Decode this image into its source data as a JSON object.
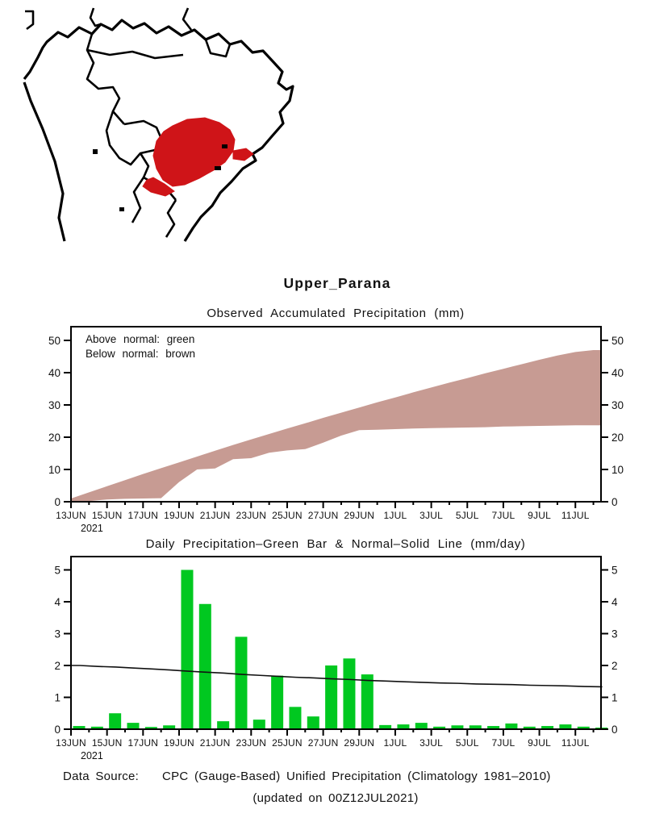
{
  "title": "Upper_Parana",
  "map": {
    "highlight_color": "#cf1418",
    "outline_color": "#000000"
  },
  "footer": {
    "data_source_label": "Data Source:",
    "data_source_text": "CPC (Gauge-Based) Unified Precipitation (Climatology 1981–2010)",
    "updated_text": "(updated on 00Z12JUL2021)",
    "label_color": "#ea6a6a"
  },
  "chart_data": [
    {
      "type": "area",
      "title": "Observed Accumulated Precipitation (mm)",
      "annotations": [
        "Above normal: green",
        "Below normal: brown"
      ],
      "x": [
        "13JUN",
        "14JUN",
        "15JUN",
        "16JUN",
        "17JUN",
        "18JUN",
        "19JUN",
        "20JUN",
        "21JUN",
        "22JUN",
        "23JUN",
        "24JUN",
        "25JUN",
        "26JUN",
        "27JUN",
        "28JUN",
        "29JUN",
        "30JUN",
        "1JUL",
        "2JUL",
        "3JUL",
        "4JUL",
        "5JUL",
        "6JUL",
        "7JUL",
        "8JUL",
        "9JUL",
        "10JUL",
        "11JUL",
        "12JUL"
      ],
      "x_major_tick_labels": [
        "13JUN",
        "15JUN",
        "17JUN",
        "19JUN",
        "21JUN",
        "23JUN",
        "25JUN",
        "27JUN",
        "29JUN",
        "1JUL",
        "3JUL",
        "5JUL",
        "7JUL",
        "9JUL",
        "11JUL"
      ],
      "year_label": "2021",
      "yticks": [
        0,
        10,
        20,
        30,
        40,
        50
      ],
      "ylim": [
        0,
        54
      ],
      "legend_position": "top-left inside",
      "grid": "off",
      "series": [
        {
          "name": "normal_accumulated",
          "role": "band-upper",
          "values": [
            1.0,
            2.9,
            4.8,
            6.7,
            8.6,
            10.4,
            12.2,
            14.0,
            15.8,
            17.6,
            19.3,
            21.0,
            22.7,
            24.3,
            26.0,
            27.6,
            29.2,
            30.8,
            32.3,
            33.9,
            35.4,
            36.9,
            38.3,
            39.8,
            41.2,
            42.6,
            44.0,
            45.3,
            46.4,
            47.0
          ]
        },
        {
          "name": "observed_accumulated",
          "role": "band-lower",
          "values": [
            0.1,
            0.2,
            0.7,
            0.9,
            1.0,
            1.1,
            6.1,
            10.0,
            10.3,
            13.2,
            13.5,
            15.2,
            15.9,
            16.3,
            18.3,
            20.5,
            22.2,
            22.3,
            22.5,
            22.7,
            22.8,
            22.9,
            23.0,
            23.1,
            23.3,
            23.4,
            23.5,
            23.6,
            23.7,
            23.7
          ]
        }
      ],
      "band_fill_below_normal": "#c79b93",
      "band_fill_above_normal": "#00c820"
    },
    {
      "type": "bar",
      "title": "Daily Precipitation–Green Bar & Normal–Solid Line (mm/day)",
      "x": [
        "13JUN",
        "14JUN",
        "15JUN",
        "16JUN",
        "17JUN",
        "18JUN",
        "19JUN",
        "20JUN",
        "21JUN",
        "22JUN",
        "23JUN",
        "24JUN",
        "25JUN",
        "26JUN",
        "27JUN",
        "28JUN",
        "29JUN",
        "30JUN",
        "1JUL",
        "2JUL",
        "3JUL",
        "4JUL",
        "5JUL",
        "6JUL",
        "7JUL",
        "8JUL",
        "9JUL",
        "10JUL",
        "11JUL",
        "12JUL"
      ],
      "x_major_tick_labels": [
        "13JUN",
        "15JUN",
        "17JUN",
        "19JUN",
        "21JUN",
        "23JUN",
        "25JUN",
        "27JUN",
        "29JUN",
        "1JUL",
        "3JUL",
        "5JUL",
        "7JUL",
        "9JUL",
        "11JUL"
      ],
      "year_label": "2021",
      "yticks": [
        0,
        1,
        2,
        3,
        4,
        5
      ],
      "ylim": [
        0,
        5.42
      ],
      "grid": "off",
      "series": [
        {
          "name": "daily_precipitation",
          "type": "bar",
          "color": "#00c820",
          "values": [
            0.1,
            0.08,
            0.5,
            0.2,
            0.07,
            0.12,
            5.0,
            3.93,
            0.25,
            2.9,
            0.3,
            1.68,
            0.7,
            0.4,
            2.0,
            2.22,
            1.72,
            0.13,
            0.15,
            0.2,
            0.08,
            0.12,
            0.12,
            0.1,
            0.18,
            0.08,
            0.1,
            0.15,
            0.08,
            0.05
          ]
        },
        {
          "name": "normal_climatology",
          "type": "line",
          "color": "#111111",
          "values": [
            2.0,
            1.97,
            1.95,
            1.92,
            1.89,
            1.86,
            1.82,
            1.79,
            1.76,
            1.72,
            1.69,
            1.66,
            1.63,
            1.61,
            1.58,
            1.56,
            1.53,
            1.51,
            1.49,
            1.47,
            1.45,
            1.44,
            1.42,
            1.41,
            1.4,
            1.38,
            1.37,
            1.36,
            1.34,
            1.33
          ]
        }
      ]
    }
  ]
}
